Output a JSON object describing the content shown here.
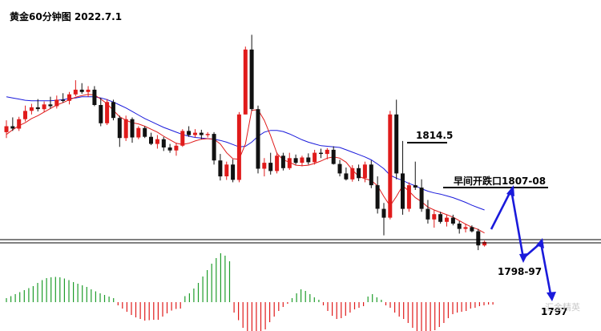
{
  "chart_data": {
    "type": "candlestick",
    "title": "黄金60分钟图 2022.7.1",
    "colors": {
      "up": "#e01b1b",
      "down": "#111111",
      "ma_fast": "#e01b1b",
      "ma_slow": "#1a1adb",
      "projection": "#1a1adb",
      "hist_up": "#1f9d2b",
      "hist_down": "#e01b1b",
      "level_line": "#000000",
      "separator": "#000000"
    },
    "annotations": {
      "resistance_label": "1814.5",
      "early_gap_label": "早间开跌口1807-08",
      "target1_label": "1798-97",
      "target2_label": "1797",
      "watermark": "汇金精英"
    },
    "price_range": [
      1792,
      1828
    ],
    "candles": [
      [
        1809.0,
        1811.0,
        1808.0,
        1810.0
      ],
      [
        1810.0,
        1811.5,
        1809.2,
        1809.6
      ],
      [
        1809.6,
        1811.6,
        1809.2,
        1811.2
      ],
      [
        1811.2,
        1813.5,
        1810.8,
        1812.6
      ],
      [
        1812.6,
        1813.8,
        1812.0,
        1813.2
      ],
      [
        1813.2,
        1814.6,
        1812.5,
        1812.9
      ],
      [
        1812.9,
        1814.2,
        1812.4,
        1813.7
      ],
      [
        1813.7,
        1815.0,
        1813.0,
        1813.4
      ],
      [
        1813.4,
        1815.2,
        1813.0,
        1814.5
      ],
      [
        1814.5,
        1815.6,
        1814.0,
        1814.3
      ],
      [
        1814.3,
        1815.8,
        1813.7,
        1815.4
      ],
      [
        1815.4,
        1817.8,
        1815.1,
        1816.2
      ],
      [
        1816.2,
        1817.3,
        1815.5,
        1815.8
      ],
      [
        1815.8,
        1816.8,
        1815.0,
        1816.2
      ],
      [
        1816.2,
        1816.8,
        1813.4,
        1813.6
      ],
      [
        1813.6,
        1814.8,
        1810.0,
        1810.5
      ],
      [
        1810.5,
        1814.6,
        1810.2,
        1814.1
      ],
      [
        1814.1,
        1814.5,
        1811.0,
        1811.4
      ],
      [
        1811.4,
        1811.8,
        1806.5,
        1808.0
      ],
      [
        1808.0,
        1811.8,
        1807.5,
        1811.2
      ],
      [
        1811.2,
        1811.5,
        1807.2,
        1808.1
      ],
      [
        1808.1,
        1810.0,
        1807.8,
        1809.7
      ],
      [
        1809.7,
        1810.0,
        1808.0,
        1808.2
      ],
      [
        1808.2,
        1808.9,
        1806.8,
        1807.0
      ],
      [
        1807.0,
        1808.5,
        1806.2,
        1807.8
      ],
      [
        1807.8,
        1808.2,
        1805.8,
        1806.4
      ],
      [
        1806.4,
        1807.0,
        1805.5,
        1805.9
      ],
      [
        1805.9,
        1807.2,
        1805.0,
        1806.7
      ],
      [
        1806.7,
        1809.5,
        1806.5,
        1809.2
      ],
      [
        1809.2,
        1810.0,
        1808.2,
        1808.5
      ],
      [
        1808.5,
        1809.5,
        1808.1,
        1808.9
      ],
      [
        1808.9,
        1809.4,
        1807.8,
        1808.5
      ],
      [
        1808.5,
        1809.0,
        1808.1,
        1808.7
      ],
      [
        1808.7,
        1809.0,
        1803.5,
        1804.2
      ],
      [
        1804.2,
        1805.3,
        1800.8,
        1801.5
      ],
      [
        1801.5,
        1804.0,
        1800.9,
        1803.5
      ],
      [
        1803.5,
        1804.4,
        1800.5,
        1800.9
      ],
      [
        1800.9,
        1812.4,
        1800.5,
        1812.0
      ],
      [
        1812.0,
        1823.5,
        1812.0,
        1823.0
      ],
      [
        1823.0,
        1825.5,
        1812.6,
        1812.9
      ],
      [
        1812.9,
        1813.5,
        1802.0,
        1802.8
      ],
      [
        1802.8,
        1804.6,
        1801.5,
        1803.8
      ],
      [
        1803.8,
        1805.5,
        1801.8,
        1802.4
      ],
      [
        1802.4,
        1805.6,
        1802.0,
        1805.0
      ],
      [
        1805.0,
        1805.5,
        1802.5,
        1802.9
      ],
      [
        1802.9,
        1805.5,
        1802.6,
        1804.6
      ],
      [
        1804.6,
        1805.2,
        1803.5,
        1803.8
      ],
      [
        1803.8,
        1805.0,
        1803.2,
        1804.7
      ],
      [
        1804.7,
        1805.4,
        1803.5,
        1803.9
      ],
      [
        1803.9,
        1806.0,
        1803.5,
        1805.5
      ],
      [
        1805.5,
        1806.2,
        1804.6,
        1805.3
      ],
      [
        1805.3,
        1806.3,
        1804.4,
        1806.0
      ],
      [
        1806.0,
        1806.6,
        1803.5,
        1803.6
      ],
      [
        1803.6,
        1804.3,
        1801.5,
        1802.0
      ],
      [
        1802.0,
        1803.0,
        1800.8,
        1801.0
      ],
      [
        1801.0,
        1803.4,
        1800.6,
        1802.9
      ],
      [
        1802.9,
        1803.5,
        1800.7,
        1801.2
      ],
      [
        1801.2,
        1804.0,
        1800.5,
        1803.5
      ],
      [
        1803.5,
        1804.2,
        1799.5,
        1800.0
      ],
      [
        1800.0,
        1801.5,
        1795.2,
        1796.0
      ],
      [
        1796.0,
        1797.0,
        1791.5,
        1794.5
      ],
      [
        1794.5,
        1812.6,
        1794.2,
        1812.0
      ],
      [
        1812.0,
        1814.5,
        1801.0,
        1802.0
      ],
      [
        1802.0,
        1807.5,
        1795.0,
        1796.0
      ],
      [
        1796.0,
        1800.5,
        1795.5,
        1800.0
      ],
      [
        1800.0,
        1804.0,
        1799.2,
        1799.6
      ],
      [
        1799.6,
        1801.0,
        1795.5,
        1796.0
      ],
      [
        1796.0,
        1797.5,
        1793.5,
        1794.2
      ],
      [
        1794.2,
        1795.8,
        1792.8,
        1795.1
      ],
      [
        1795.1,
        1795.5,
        1793.5,
        1793.8
      ],
      [
        1793.8,
        1795.0,
        1793.0,
        1794.5
      ],
      [
        1794.5,
        1795.0,
        1793.2,
        1793.5
      ],
      [
        1793.5,
        1793.9,
        1791.8,
        1792.6
      ],
      [
        1792.6,
        1793.5,
        1792.0,
        1792.9
      ],
      [
        1792.9,
        1793.2,
        1792.0,
        1792.2
      ],
      [
        1792.2,
        1792.6,
        1789.0,
        1789.8
      ],
      [
        1789.8,
        1790.6,
        1789.6,
        1790.4
      ]
    ],
    "ma_fast": [
      1808.6,
      1809.4,
      1810.1,
      1810.6,
      1811.3,
      1811.8,
      1812.4,
      1813.0,
      1813.6,
      1814.0,
      1814.5,
      1814.9,
      1815.2,
      1815.4,
      1815.3,
      1814.6,
      1813.8,
      1812.7,
      1811.6,
      1811.0,
      1810.6,
      1810.4,
      1810.0,
      1809.5,
      1809.0,
      1808.3,
      1807.7,
      1807.1,
      1806.9,
      1807.1,
      1807.5,
      1807.8,
      1807.9,
      1807.8,
      1807.0,
      1805.5,
      1804.5,
      1804.4,
      1807.0,
      1812.7,
      1812.8,
      1811.0,
      1808.4,
      1805.4,
      1804.3,
      1803.9,
      1803.4,
      1803.3,
      1803.4,
      1803.7,
      1804.1,
      1804.6,
      1804.8,
      1804.6,
      1803.9,
      1802.6,
      1801.5,
      1801.1,
      1800.8,
      1799.9,
      1798.1,
      1796.5,
      1798.1,
      1799.9,
      1799.0,
      1797.9,
      1797.2,
      1796.3,
      1795.8,
      1795.4,
      1795.0,
      1794.6,
      1794.0,
      1793.4,
      1792.9,
      1792.5,
      1791.9
    ],
    "ma_slow": [
      1815.0,
      1814.8,
      1814.6,
      1814.4,
      1814.3,
      1814.3,
      1814.3,
      1814.3,
      1814.4,
      1814.5,
      1814.7,
      1814.8,
      1815.0,
      1815.0,
      1815.0,
      1814.8,
      1814.5,
      1814.1,
      1813.6,
      1813.1,
      1812.5,
      1811.9,
      1811.3,
      1810.8,
      1810.3,
      1809.8,
      1809.4,
      1809.0,
      1808.6,
      1808.3,
      1808.1,
      1808.0,
      1807.9,
      1807.8,
      1807.6,
      1807.3,
      1806.9,
      1806.5,
      1806.6,
      1807.3,
      1808.3,
      1809.0,
      1809.3,
      1809.3,
      1809.1,
      1808.7,
      1808.2,
      1807.7,
      1807.3,
      1807.0,
      1806.7,
      1806.6,
      1806.5,
      1806.4,
      1806.0,
      1805.6,
      1805.2,
      1804.8,
      1804.3,
      1803.6,
      1802.8,
      1801.7,
      1801.2,
      1800.8,
      1800.3,
      1799.9,
      1799.4,
      1799.0,
      1798.7,
      1798.5,
      1798.2,
      1797.9,
      1797.5,
      1797.1,
      1796.6,
      1796.2,
      1795.8
    ],
    "histogram": [
      1.0,
      1.5,
      2.0,
      2.5,
      3.0,
      3.5,
      4.0,
      4.8,
      5.5,
      6.0,
      6.2,
      6.3,
      6.2,
      5.9,
      5.5,
      5.0,
      4.6,
      4.2,
      3.8,
      3.2,
      2.7,
      2.2,
      1.8,
      1.4,
      1.0,
      -0.8,
      -1.6,
      -2.4,
      -3.2,
      -3.8,
      -4.2,
      -4.6,
      -4.5,
      -4.4,
      -4.4,
      -3.6,
      -2.8,
      -2.1,
      -1.7,
      -1.6,
      1.5,
      2.2,
      3.4,
      4.8,
      6.4,
      8.0,
      9.6,
      11.0,
      12.2,
      11.6,
      10.2,
      -2.6,
      -4.5,
      -6.4,
      -8.2,
      -9.5,
      -10.4,
      -8.8,
      -6.8,
      -5.0,
      -3.6,
      -2.2,
      -1.2,
      -0.4,
      1.0,
      2.2,
      3.2,
      2.8,
      2.0,
      1.2,
      0.6,
      -0.8,
      -2.2,
      -3.4,
      -4.2,
      -4.0,
      -3.4,
      -2.6,
      -1.8,
      -1.4,
      -1.0,
      1.4,
      2.0,
      1.2,
      0.6,
      -0.8,
      -1.4,
      -2.6,
      -3.6,
      -4.2,
      -5.2,
      -6.4,
      -7.8,
      -8.6,
      -8.4,
      -7.6,
      -7.0,
      -6.2,
      -5.2,
      -4.0,
      -3.0,
      -2.6,
      -2.4,
      -2.2,
      -1.6,
      -1.4,
      -1.0,
      -0.8,
      -0.6,
      -0.6
    ]
  }
}
